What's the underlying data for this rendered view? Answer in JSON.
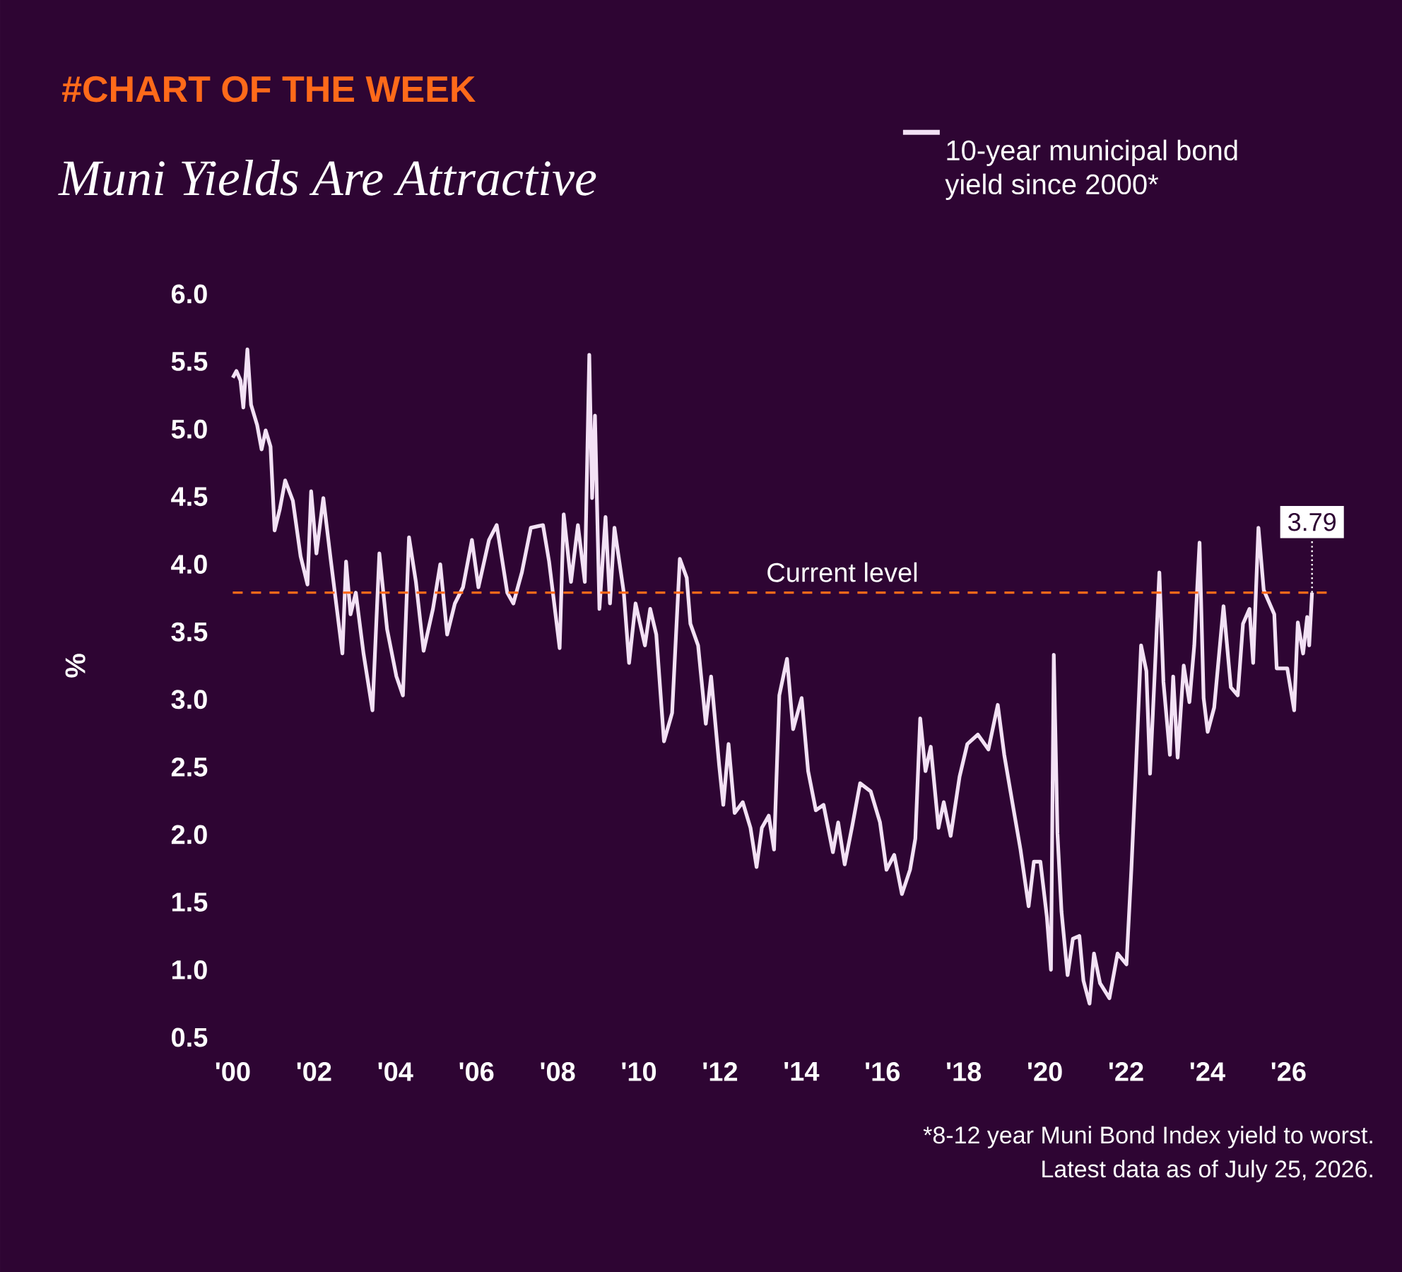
{
  "chart_data": {
    "type": "line",
    "title": "Muni Yields Are Attractive",
    "subtitle": "#CHART OF THE WEEK",
    "ylabel": "%",
    "x": [
      2000.0,
      2000.09,
      2000.19,
      2000.26,
      2000.36,
      2000.45,
      2000.6,
      2000.71,
      2000.81,
      2000.93,
      2001.03,
      2001.16,
      2001.29,
      2001.48,
      2001.67,
      2001.84,
      2001.93,
      2002.06,
      2002.23,
      2002.41,
      2002.7,
      2002.79,
      2002.9,
      2003.03,
      2003.22,
      2003.44,
      2003.61,
      2003.8,
      2004.03,
      2004.19,
      2004.34,
      2004.51,
      2004.7,
      2004.93,
      2005.11,
      2005.28,
      2005.47,
      2005.67,
      2005.89,
      2006.05,
      2006.31,
      2006.5,
      2006.76,
      2006.91,
      2007.12,
      2007.34,
      2007.64,
      2007.79,
      2008.05,
      2008.15,
      2008.33,
      2008.5,
      2008.67,
      2008.78,
      2008.85,
      2008.92,
      2009.03,
      2009.18,
      2009.29,
      2009.4,
      2009.63,
      2009.76,
      2009.92,
      2010.15,
      2010.28,
      2010.43,
      2010.62,
      2010.82,
      2011.01,
      2011.18,
      2011.27,
      2011.46,
      2011.65,
      2011.78,
      2011.98,
      2012.08,
      2012.21,
      2012.36,
      2012.56,
      2012.75,
      2012.9,
      2013.03,
      2013.2,
      2013.33,
      2013.46,
      2013.65,
      2013.8,
      2014.01,
      2014.17,
      2014.36,
      2014.55,
      2014.78,
      2014.91,
      2015.07,
      2015.26,
      2015.45,
      2015.71,
      2015.94,
      2016.1,
      2016.29,
      2016.48,
      2016.68,
      2016.81,
      2016.93,
      2017.06,
      2017.19,
      2017.38,
      2017.51,
      2017.68,
      2017.9,
      2018.09,
      2018.35,
      2018.61,
      2018.84,
      2019.0,
      2019.21,
      2019.4,
      2019.6,
      2019.73,
      2019.89,
      2020.05,
      2020.15,
      2020.22,
      2020.31,
      2020.41,
      2020.56,
      2020.69,
      2020.85,
      2020.95,
      2021.1,
      2021.21,
      2021.36,
      2021.59,
      2021.79,
      2022.01,
      2022.13,
      2022.24,
      2022.37,
      2022.5,
      2022.59,
      2022.69,
      2022.82,
      2022.92,
      2023.08,
      2023.16,
      2023.27,
      2023.42,
      2023.56,
      2023.68,
      2023.81,
      2023.91,
      2024.01,
      2024.17,
      2024.4,
      2024.58,
      2024.75,
      2024.88,
      2025.04,
      2025.13,
      2025.26,
      2025.39,
      2025.65,
      2025.71,
      2025.97,
      2026.14,
      2026.23,
      2026.36,
      2026.46,
      2026.51,
      2026.58
    ],
    "series": [
      {
        "name": "10-year municipal bond yield since 2000*",
        "color": "#f3e1f5",
        "values": [
          5.38,
          5.43,
          5.36,
          5.16,
          5.59,
          5.18,
          5.03,
          4.85,
          4.99,
          4.87,
          4.25,
          4.41,
          4.62,
          4.47,
          4.06,
          3.85,
          4.54,
          4.08,
          4.49,
          4.04,
          3.34,
          4.02,
          3.63,
          3.79,
          3.34,
          2.92,
          4.08,
          3.52,
          3.17,
          3.03,
          4.2,
          3.87,
          3.36,
          3.67,
          4.0,
          3.48,
          3.71,
          3.83,
          4.18,
          3.83,
          4.18,
          4.29,
          3.79,
          3.71,
          3.94,
          4.27,
          4.29,
          4.02,
          3.38,
          4.37,
          3.87,
          4.29,
          3.87,
          5.55,
          4.49,
          5.1,
          3.67,
          4.35,
          3.71,
          4.27,
          3.79,
          3.27,
          3.71,
          3.4,
          3.67,
          3.48,
          2.69,
          2.9,
          4.04,
          3.9,
          3.56,
          3.4,
          2.82,
          3.17,
          2.51,
          2.22,
          2.67,
          2.16,
          2.24,
          2.05,
          1.76,
          2.05,
          2.14,
          1.89,
          3.03,
          3.3,
          2.78,
          3.01,
          2.47,
          2.18,
          2.22,
          1.87,
          2.09,
          1.78,
          2.07,
          2.38,
          2.32,
          2.09,
          1.74,
          1.85,
          1.56,
          1.74,
          1.97,
          2.86,
          2.47,
          2.65,
          2.05,
          2.24,
          1.99,
          2.43,
          2.67,
          2.74,
          2.63,
          2.96,
          2.59,
          2.22,
          1.89,
          1.47,
          1.8,
          1.8,
          1.39,
          1.0,
          3.33,
          2.01,
          1.43,
          0.96,
          1.23,
          1.25,
          0.92,
          0.75,
          1.12,
          0.9,
          0.79,
          1.12,
          1.04,
          1.74,
          2.47,
          3.4,
          3.21,
          2.45,
          3.09,
          3.94,
          3.13,
          2.59,
          3.17,
          2.57,
          3.25,
          2.98,
          3.4,
          4.16,
          3.01,
          2.76,
          2.94,
          3.69,
          3.09,
          3.03,
          3.56,
          3.67,
          3.27,
          4.27,
          3.81,
          3.63,
          3.23,
          3.23,
          2.92,
          3.57,
          3.34,
          3.61,
          3.4,
          3.79
        ]
      }
    ],
    "xlim": [
      2000,
      2027
    ],
    "ylim": [
      0.5,
      6.0
    ],
    "xticks": [
      {
        "value": 2000,
        "label": "'00"
      },
      {
        "value": 2002,
        "label": "'02"
      },
      {
        "value": 2004,
        "label": "'04"
      },
      {
        "value": 2006,
        "label": "'06"
      },
      {
        "value": 2008,
        "label": "'08"
      },
      {
        "value": 2010,
        "label": "'10"
      },
      {
        "value": 2012,
        "label": "'12"
      },
      {
        "value": 2014,
        "label": "'14"
      },
      {
        "value": 2016,
        "label": "'16"
      },
      {
        "value": 2018,
        "label": "'18"
      },
      {
        "value": 2020,
        "label": "'20"
      },
      {
        "value": 2022,
        "label": "'22"
      },
      {
        "value": 2024,
        "label": "'24"
      },
      {
        "value": 2026,
        "label": "'26"
      }
    ],
    "yticks": [
      {
        "value": 0.5,
        "label": "0.5"
      },
      {
        "value": 1,
        "label": "1.0"
      },
      {
        "value": 1.5,
        "label": "1.5"
      },
      {
        "value": 2,
        "label": "2.0"
      },
      {
        "value": 2.5,
        "label": "2.5"
      },
      {
        "value": 3,
        "label": "3.0"
      },
      {
        "value": 3.5,
        "label": "3.5"
      },
      {
        "value": 4,
        "label": "4.0"
      },
      {
        "value": 4.5,
        "label": "4.5"
      },
      {
        "value": 5,
        "label": "5.0"
      },
      {
        "value": 5.5,
        "label": "5.5"
      },
      {
        "value": 6,
        "label": "6.0"
      }
    ],
    "ref_lines": [
      {
        "axis": "y",
        "value": 3.79,
        "label": "Current level",
        "color": "#ff6a1a",
        "line_style": "dashed"
      }
    ],
    "annotations": [
      {
        "text": "3.79",
        "x": 2026.58,
        "y": 3.79
      },
      "*8-12 year Muni Bond Index yield to worst.",
      "Latest data as of July 25, 2026."
    ],
    "legend": "top right",
    "marker": "none",
    "line_style": "solid"
  }
}
